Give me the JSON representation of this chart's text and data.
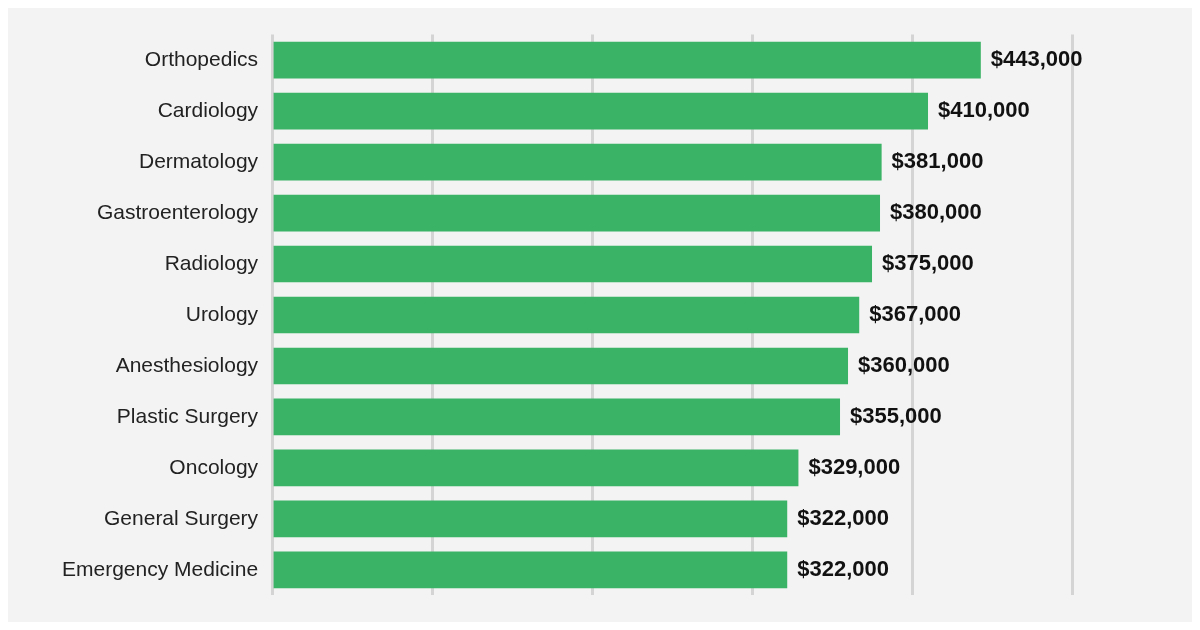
{
  "chart_data": {
    "type": "bar",
    "orientation": "horizontal",
    "categories": [
      "Orthopedics",
      "Cardiology",
      "Dermatology",
      "Gastroenterology",
      "Radiology",
      "Urology",
      "Anesthesiology",
      "Plastic Surgery",
      "Oncology",
      "General Surgery",
      "Emergency Medicine"
    ],
    "values": [
      443000,
      410000,
      381000,
      380000,
      375000,
      367000,
      360000,
      355000,
      329000,
      322000,
      322000
    ],
    "value_labels": [
      "$443,000",
      "$410,000",
      "$381,000",
      "$380,000",
      "$375,000",
      "$367,000",
      "$360,000",
      "$355,000",
      "$329,000",
      "$322,000",
      "$322,000"
    ],
    "color": "#3bb366",
    "xlim": [
      0,
      500000
    ],
    "xticks": [
      {
        "value": 0,
        "label": null
      },
      {
        "value": 100000,
        "label": null
      },
      {
        "value": 200000,
        "label": null
      },
      {
        "value": 300000,
        "label": null
      },
      {
        "value": 400000,
        "label": null
      },
      {
        "value": 500000,
        "label": null
      }
    ],
    "grid": "x",
    "tick_labels": "y",
    "legend": false
  }
}
